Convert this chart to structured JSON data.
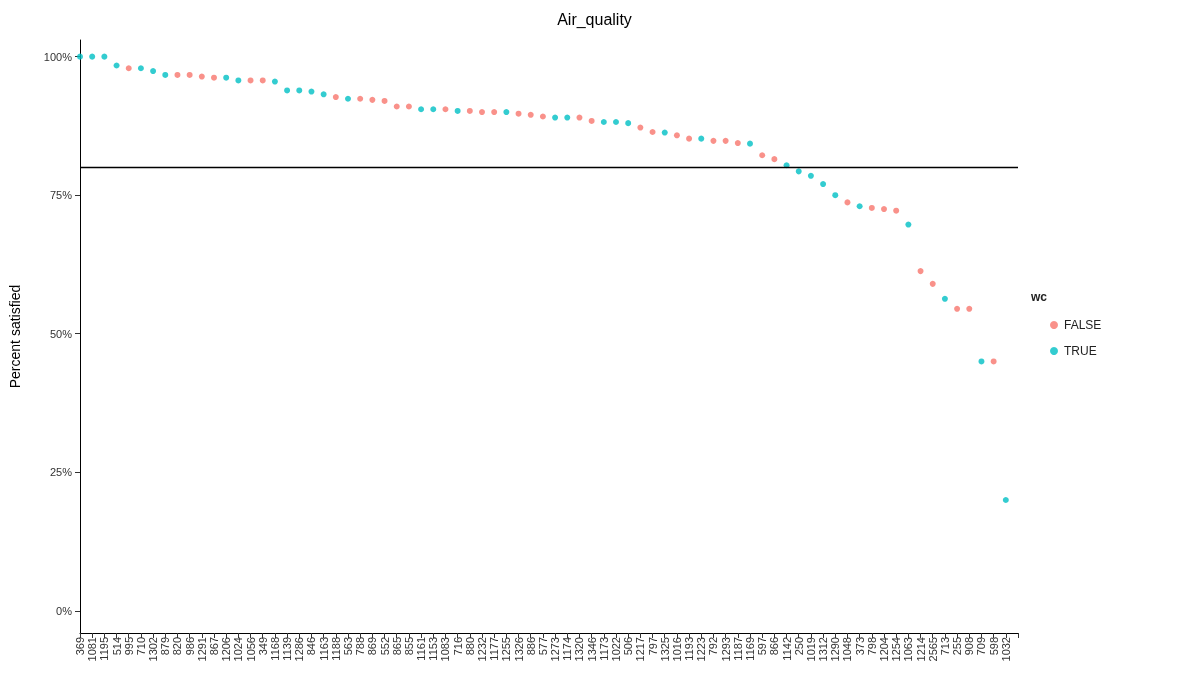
{
  "chart_data": {
    "type": "scatter",
    "title": "Air_quality",
    "ylabel": "Percent satisfied",
    "legend_title": "wc",
    "categories": [
      "369",
      "1081",
      "1195",
      "514",
      "995",
      "710",
      "1302",
      "879",
      "820",
      "986",
      "1291",
      "867",
      "1206",
      "1024",
      "1056",
      "349",
      "1168",
      "1139",
      "1286",
      "846",
      "1163",
      "1188",
      "563",
      "788",
      "869",
      "552",
      "865",
      "855",
      "1161",
      "1153",
      "1083",
      "716",
      "880",
      "1232",
      "1177",
      "1255",
      "1326",
      "886",
      "577",
      "1273",
      "1174",
      "1320",
      "1346",
      "1173",
      "1022",
      "506",
      "1217",
      "797",
      "1325",
      "1016",
      "1193",
      "1223",
      "792",
      "1293",
      "1187",
      "1169",
      "597",
      "866",
      "1142",
      "250",
      "1019",
      "1312",
      "1290",
      "1048",
      "373",
      "798",
      "1204",
      "1254",
      "1063",
      "1214",
      "2565",
      "713",
      "255",
      "908",
      "709",
      "598",
      "1032"
    ],
    "series": [
      {
        "name": "FALSE",
        "color": "#f8766d",
        "values": [
          null,
          null,
          null,
          null,
          97.9,
          null,
          null,
          null,
          96.7,
          96.7,
          96.4,
          96.2,
          null,
          null,
          95.7,
          95.7,
          null,
          null,
          null,
          null,
          null,
          92.7,
          null,
          92.4,
          92.2,
          92.0,
          91.0,
          91.0,
          null,
          null,
          90.5,
          null,
          90.2,
          90.0,
          90.0,
          null,
          89.7,
          89.5,
          89.2,
          null,
          null,
          89.0,
          88.4,
          null,
          null,
          null,
          87.2,
          86.4,
          null,
          85.8,
          85.2,
          null,
          84.8,
          84.8,
          84.4,
          null,
          82.2,
          81.5,
          null,
          null,
          null,
          null,
          null,
          73.7,
          null,
          72.7,
          72.5,
          72.2,
          null,
          61.3,
          59.0,
          null,
          54.5,
          54.5,
          null,
          45,
          null
        ]
      },
      {
        "name": "TRUE",
        "color": "#00bfc4",
        "values": [
          100,
          100,
          100,
          98.4,
          null,
          97.9,
          97.4,
          96.7,
          null,
          null,
          null,
          null,
          96.2,
          95.7,
          null,
          null,
          95.5,
          93.9,
          93.9,
          93.7,
          93.2,
          null,
          92.4,
          null,
          null,
          null,
          null,
          null,
          90.5,
          90.5,
          null,
          90.2,
          null,
          null,
          null,
          90.0,
          null,
          null,
          null,
          89.0,
          89.0,
          null,
          null,
          88.2,
          88.2,
          88.0,
          null,
          null,
          86.3,
          null,
          null,
          85.2,
          null,
          null,
          null,
          84.3,
          null,
          null,
          80.4,
          79.3,
          78.5,
          77.0,
          75.0,
          null,
          73.0,
          null,
          null,
          null,
          69.7,
          null,
          null,
          56.3,
          null,
          null,
          45,
          null,
          20
        ]
      }
    ],
    "ylim": [
      -4,
      103
    ],
    "yticks": [
      {
        "value": 0,
        "label": "0%"
      },
      {
        "value": 25,
        "label": "25%"
      },
      {
        "value": 50,
        "label": "50%"
      },
      {
        "value": 75,
        "label": "75%"
      },
      {
        "value": 100,
        "label": "100%"
      }
    ],
    "ref_lines": [
      {
        "axis": "y",
        "value": 80,
        "color": "#000000"
      }
    ],
    "grid": false,
    "legend": "right",
    "marker": "circle"
  }
}
